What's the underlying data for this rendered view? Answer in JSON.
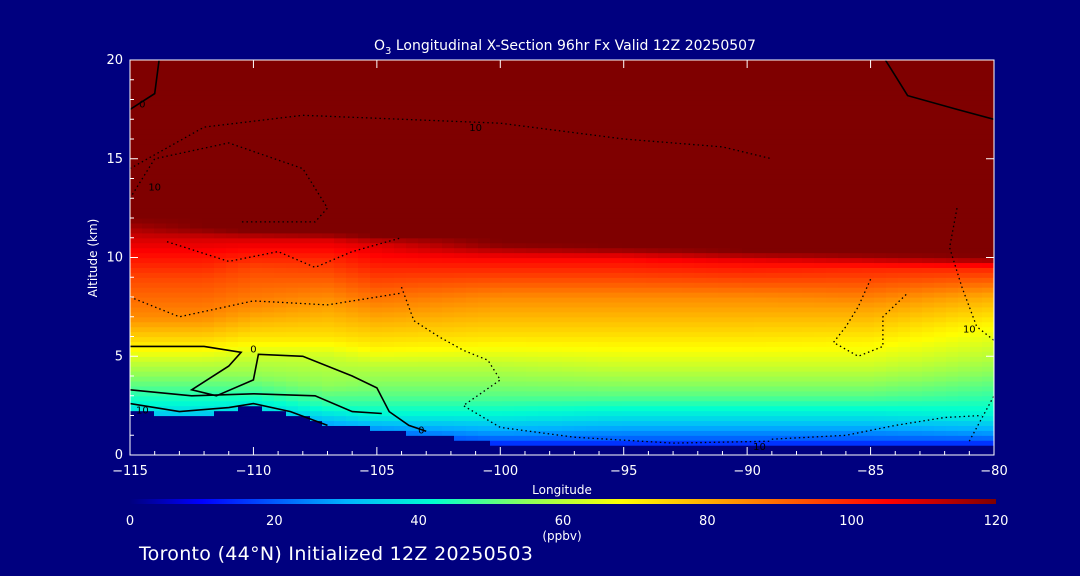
{
  "chart_data": {
    "type": "heatmap",
    "title_main": "O",
    "title_sub": "3",
    "title_rest": " Longitudinal X-Section 96hr  Fx Valid 12Z 20250507",
    "xlabel": "Longitude",
    "ylabel": "Altitude (km)",
    "xlim": [
      -115,
      -80
    ],
    "ylim": [
      0,
      20
    ],
    "x_ticks": [
      -115,
      -110,
      -105,
      -100,
      -95,
      -90,
      -85,
      -80
    ],
    "x_tick_labels": [
      "−115",
      "−110",
      "−105",
      "−100",
      "−95",
      "−90",
      "−85",
      "−80"
    ],
    "y_ticks": [
      0,
      5,
      10,
      15,
      20
    ],
    "y_tick_labels": [
      "0",
      "5",
      "10",
      "15",
      "20"
    ],
    "colorbar": {
      "min": 0,
      "max": 120,
      "ticks": [
        0,
        20,
        40,
        60,
        80,
        100,
        120
      ],
      "tick_labels": [
        "0",
        "20",
        "40",
        "60",
        "80",
        "100",
        "120"
      ],
      "units": "(ppbv)"
    },
    "colormap_stops": [
      {
        "v": 0,
        "c": "#00007f"
      },
      {
        "v": 10,
        "c": "#0000ff"
      },
      {
        "v": 30,
        "c": "#00b4ff"
      },
      {
        "v": 42,
        "c": "#00ffd0"
      },
      {
        "v": 55,
        "c": "#8cff5a"
      },
      {
        "v": 68,
        "c": "#ffff00"
      },
      {
        "v": 85,
        "c": "#ff8c00"
      },
      {
        "v": 105,
        "c": "#ff0000"
      },
      {
        "v": 120,
        "c": "#7f0000"
      }
    ],
    "ozone_profile": [
      {
        "x": -115,
        "surface": 2.2,
        "levels": [
          [
            2.5,
            40
          ],
          [
            3.5,
            50
          ],
          [
            4.8,
            62
          ],
          [
            5.5,
            70
          ],
          [
            7,
            85
          ],
          [
            9,
            95
          ],
          [
            11,
            110
          ],
          [
            12,
            120
          ]
        ]
      },
      {
        "x": -112,
        "surface": 2.0,
        "levels": [
          [
            2.5,
            40
          ],
          [
            3.5,
            50
          ],
          [
            4.8,
            62
          ],
          [
            5.5,
            70
          ],
          [
            7,
            85
          ],
          [
            9,
            95
          ],
          [
            11,
            110
          ],
          [
            11.5,
            120
          ]
        ]
      },
      {
        "x": -110,
        "surface": 2.5,
        "levels": [
          [
            3,
            45
          ],
          [
            4,
            55
          ],
          [
            5,
            62
          ],
          [
            6,
            72
          ],
          [
            7.5,
            85
          ],
          [
            9.5,
            95
          ],
          [
            11,
            110
          ],
          [
            11.3,
            120
          ]
        ]
      },
      {
        "x": -107,
        "surface": 1.6,
        "levels": [
          [
            2.5,
            45
          ],
          [
            3.5,
            55
          ],
          [
            5,
            62
          ],
          [
            6,
            72
          ],
          [
            8,
            85
          ],
          [
            10,
            100
          ],
          [
            11,
            110
          ],
          [
            11.2,
            120
          ]
        ]
      },
      {
        "x": -105,
        "surface": 1.3,
        "levels": [
          [
            2,
            40
          ],
          [
            3,
            50
          ],
          [
            4.5,
            60
          ],
          [
            5.5,
            70
          ],
          [
            7.5,
            85
          ],
          [
            9.5,
            100
          ],
          [
            10.8,
            110
          ],
          [
            11,
            120
          ]
        ]
      },
      {
        "x": -100,
        "surface": 0.6,
        "levels": [
          [
            1,
            25
          ],
          [
            2,
            40
          ],
          [
            3,
            50
          ],
          [
            4.5,
            60
          ],
          [
            6,
            72
          ],
          [
            8,
            85
          ],
          [
            10,
            105
          ],
          [
            10.7,
            120
          ]
        ]
      },
      {
        "x": -95,
        "surface": 0.5,
        "levels": [
          [
            0.8,
            20
          ],
          [
            1.8,
            35
          ],
          [
            3,
            50
          ],
          [
            4.5,
            62
          ],
          [
            6,
            72
          ],
          [
            8,
            85
          ],
          [
            10,
            105
          ],
          [
            10.5,
            120
          ]
        ]
      },
      {
        "x": -90,
        "surface": 0.5,
        "levels": [
          [
            0.8,
            20
          ],
          [
            1.8,
            35
          ],
          [
            3,
            50
          ],
          [
            4.5,
            62
          ],
          [
            6,
            72
          ],
          [
            8,
            85
          ],
          [
            9.8,
            105
          ],
          [
            10.3,
            120
          ]
        ]
      },
      {
        "x": -85,
        "surface": 0.5,
        "levels": [
          [
            0.8,
            20
          ],
          [
            1.8,
            35
          ],
          [
            3,
            50
          ],
          [
            4.5,
            62
          ],
          [
            5.8,
            70
          ],
          [
            7.5,
            82
          ],
          [
            9.5,
            100
          ],
          [
            10.2,
            120
          ]
        ]
      },
      {
        "x": -80,
        "surface": 0.4,
        "levels": [
          [
            1,
            25
          ],
          [
            2,
            40
          ],
          [
            3.5,
            50
          ],
          [
            5,
            60
          ],
          [
            6.5,
            68
          ],
          [
            8,
            80
          ],
          [
            9.5,
            100
          ],
          [
            10,
            120
          ]
        ]
      }
    ],
    "contour_labels": [
      "0",
      "0",
      "10",
      "10",
      "10",
      "0",
      "10",
      "10"
    ],
    "location_text": "Toronto (44°N) Initialized 12Z 20250503"
  }
}
